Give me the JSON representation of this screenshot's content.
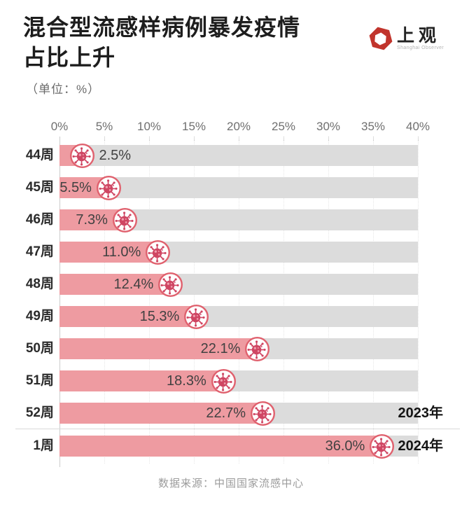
{
  "header": {
    "title_line1": "混合型流感样病例暴发疫情",
    "title_line2": "占比上升",
    "subtitle": "（单位：%）",
    "logo": {
      "name": "上观",
      "subtext": "Shanghai Observer",
      "mark_icon": "hexagon-logo-icon",
      "brand_color": "#c1342c"
    }
  },
  "chart_data": {
    "type": "bar",
    "orientation": "horizontal",
    "title": "混合型流感样病例暴发疫情占比上升",
    "unit": "%",
    "xlim": [
      0,
      40
    ],
    "tick_labels": [
      "0%",
      "5%",
      "10%",
      "15%",
      "20%",
      "25%",
      "30%",
      "35%",
      "40%"
    ],
    "tick_values": [
      0,
      5,
      10,
      15,
      20,
      25,
      30,
      35,
      40
    ],
    "categories": [
      "44周",
      "45周",
      "46周",
      "47周",
      "48周",
      "49周",
      "50周",
      "51周",
      "52周",
      "1周"
    ],
    "values": [
      2.5,
      5.5,
      7.3,
      11.0,
      12.4,
      15.3,
      22.1,
      18.3,
      22.7,
      36.0
    ],
    "value_labels": [
      "2.5%",
      "5.5%",
      "7.3%",
      "11.0%",
      "12.4%",
      "15.3%",
      "22.1%",
      "18.3%",
      "22.7%",
      "36.0%"
    ],
    "year_labels": [
      null,
      null,
      null,
      null,
      null,
      null,
      null,
      null,
      "2023年",
      "2024年"
    ],
    "divider_before_category": "1周",
    "marker_icon": "virus-icon",
    "grid": "dotted-vertical",
    "legend": "none",
    "colors": {
      "bar": "#ee9ba1",
      "track": "#dcdcdc",
      "icon_ring": "#e0616e",
      "icon_body": "#cf4663",
      "icon_dot_light": "#ef9fae"
    }
  },
  "footer": {
    "source": "数据来源：中国国家流感中心"
  }
}
